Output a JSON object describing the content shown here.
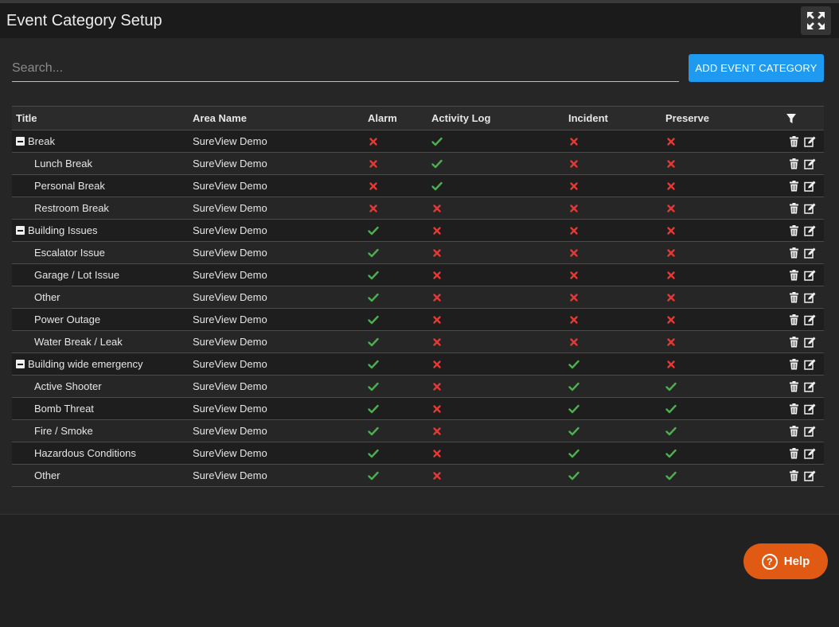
{
  "header": {
    "title": "Event Category Setup"
  },
  "search": {
    "placeholder": "Search...",
    "value": ""
  },
  "toolbar": {
    "add_label": "ADD EVENT CATEGORY"
  },
  "table": {
    "columns": [
      "Title",
      "Area Name",
      "Alarm",
      "Activity Log",
      "Incident",
      "Preserve"
    ],
    "rows": [
      {
        "title": "Break",
        "group": true,
        "area": "SureView Demo",
        "alarm": false,
        "activity_log": true,
        "incident": false,
        "preserve": false
      },
      {
        "title": "Lunch Break",
        "group": false,
        "area": "SureView Demo",
        "alarm": false,
        "activity_log": true,
        "incident": false,
        "preserve": false
      },
      {
        "title": "Personal Break",
        "group": false,
        "area": "SureView Demo",
        "alarm": false,
        "activity_log": true,
        "incident": false,
        "preserve": false
      },
      {
        "title": "Restroom Break",
        "group": false,
        "area": "SureView Demo",
        "alarm": false,
        "activity_log": false,
        "incident": false,
        "preserve": false
      },
      {
        "title": "Building Issues",
        "group": true,
        "area": "SureView Demo",
        "alarm": true,
        "activity_log": false,
        "incident": false,
        "preserve": false
      },
      {
        "title": "Escalator Issue",
        "group": false,
        "area": "SureView Demo",
        "alarm": true,
        "activity_log": false,
        "incident": false,
        "preserve": false
      },
      {
        "title": "Garage / Lot Issue",
        "group": false,
        "area": "SureView Demo",
        "alarm": true,
        "activity_log": false,
        "incident": false,
        "preserve": false
      },
      {
        "title": "Other",
        "group": false,
        "area": "SureView Demo",
        "alarm": true,
        "activity_log": false,
        "incident": false,
        "preserve": false
      },
      {
        "title": "Power Outage",
        "group": false,
        "area": "SureView Demo",
        "alarm": true,
        "activity_log": false,
        "incident": false,
        "preserve": false
      },
      {
        "title": "Water Break / Leak",
        "group": false,
        "area": "SureView Demo",
        "alarm": true,
        "activity_log": false,
        "incident": false,
        "preserve": false
      },
      {
        "title": "Building wide emergency",
        "group": true,
        "area": "SureView Demo",
        "alarm": true,
        "activity_log": false,
        "incident": true,
        "preserve": false
      },
      {
        "title": "Active Shooter",
        "group": false,
        "area": "SureView Demo",
        "alarm": true,
        "activity_log": false,
        "incident": true,
        "preserve": true
      },
      {
        "title": "Bomb Threat",
        "group": false,
        "area": "SureView Demo",
        "alarm": true,
        "activity_log": false,
        "incident": true,
        "preserve": true
      },
      {
        "title": "Fire / Smoke",
        "group": false,
        "area": "SureView Demo",
        "alarm": true,
        "activity_log": false,
        "incident": true,
        "preserve": true
      },
      {
        "title": "Hazardous Conditions",
        "group": false,
        "area": "SureView Demo",
        "alarm": true,
        "activity_log": false,
        "incident": true,
        "preserve": true
      },
      {
        "title": "Other",
        "group": false,
        "area": "SureView Demo",
        "alarm": true,
        "activity_log": false,
        "incident": true,
        "preserve": true
      }
    ]
  },
  "help": {
    "label": "Help"
  },
  "icons": {
    "expand": "expand-icon",
    "filter": "filter-icon",
    "check": "check-icon",
    "cross": "cross-icon",
    "delete": "trash-icon",
    "edit": "edit-icon",
    "collapse": "collapse-icon",
    "help": "question-circle-icon"
  },
  "colors": {
    "accent": "#1e9bf0",
    "help": "#e05a14",
    "check": "#4caf50",
    "cross": "#e53935"
  }
}
